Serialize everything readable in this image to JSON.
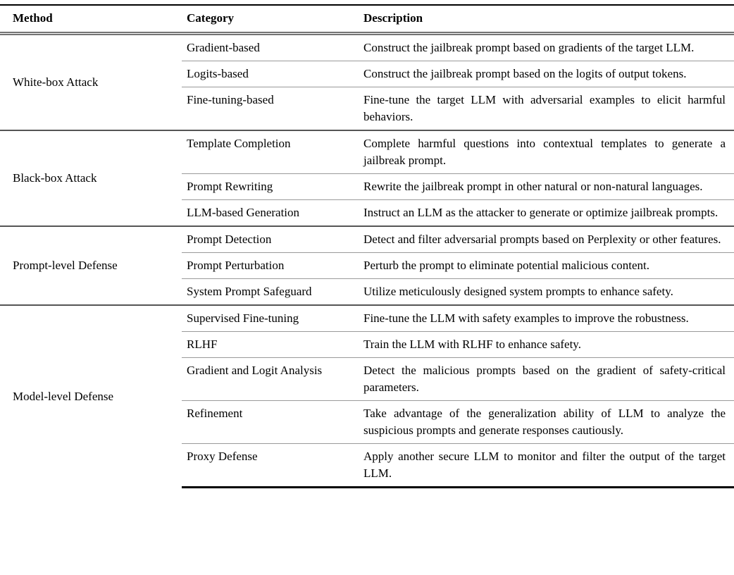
{
  "colors": {
    "rule_heavy": "#000000",
    "rule_double": "#747474",
    "rule_group": "#555555",
    "rule_row": "#9a9a9a",
    "background": "#ffffff",
    "text": "#000000"
  },
  "table": {
    "headers": [
      "Method",
      "Category",
      "Description"
    ],
    "groups": [
      {
        "method": "White-box Attack",
        "rows": [
          {
            "category": "Gradient-based",
            "description": "Construct the jailbreak prompt based on gradients of the target LLM."
          },
          {
            "category": "Logits-based",
            "description": "Construct the jailbreak prompt based on the logits of output tokens."
          },
          {
            "category": "Fine-tuning-based",
            "description": "Fine-tune the target LLM with adversarial examples to elicit harmful behaviors."
          }
        ]
      },
      {
        "method": "Black-box Attack",
        "rows": [
          {
            "category": "Template Completion",
            "description": "Complete harmful questions into contextual templates to generate a jailbreak prompt."
          },
          {
            "category": "Prompt Rewriting",
            "description": "Rewrite the jailbreak prompt in other natural or non-natural languages."
          },
          {
            "category": "LLM-based Generation",
            "description": "Instruct an LLM as the attacker to generate or optimize jailbreak prompts."
          }
        ]
      },
      {
        "method": "Prompt-level Defense",
        "rows": [
          {
            "category": "Prompt Detection",
            "description": "Detect and filter adversarial prompts based on Perplexity or other features."
          },
          {
            "category": "Prompt Perturbation",
            "description": "Perturb the prompt to eliminate potential malicious content."
          },
          {
            "category": "System Prompt Safeguard",
            "description": "Utilize meticulously designed system prompts to enhance safety."
          }
        ]
      },
      {
        "method": "Model-level Defense",
        "rows": [
          {
            "category": "Supervised Fine-tuning",
            "description": "Fine-tune the LLM with safety examples to improve the robustness."
          },
          {
            "category": "RLHF",
            "description": "Train the LLM with RLHF to enhance safety."
          },
          {
            "category": "Gradient and Logit Analysis",
            "description": "Detect the malicious prompts based on the gradient of safety-critical parameters."
          },
          {
            "category": "Refinement",
            "description": "Take advantage of the generalization ability of LLM to analyze the suspicious prompts and generate responses cautiously."
          },
          {
            "category": "Proxy Defense",
            "description": "Apply another secure LLM to monitor and filter the output of the target LLM."
          }
        ]
      }
    ]
  }
}
